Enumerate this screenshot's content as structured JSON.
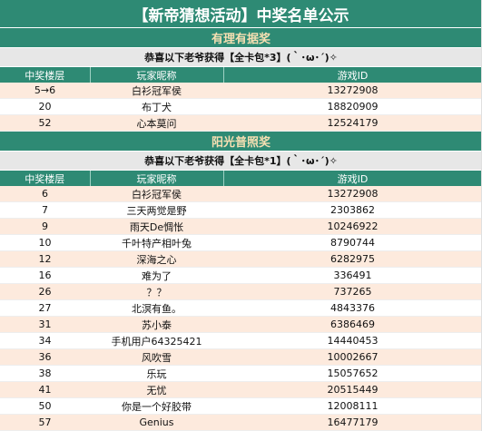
{
  "title": "【新帝猜想活动】中奖名单公示",
  "sections": [
    {
      "name": "有理有据奖",
      "subheader": "恭喜以下老爷获得【全卡包*3】(｀･ω･´)✧",
      "columns": [
        "中奖楼层",
        "玩家昵称",
        "游戏ID"
      ],
      "rows": [
        {
          "floor": "5→6",
          "nickname": "白衫冠军侯",
          "game_id": "13272908"
        },
        {
          "floor": "20",
          "nickname": "布丁犬",
          "game_id": "18820909"
        },
        {
          "floor": "52",
          "nickname": "心本莫问",
          "game_id": "12524179"
        }
      ]
    },
    {
      "name": "阳光普照奖",
      "subheader": "恭喜以下老爷获得【全卡包*1】(｀･ω･´)✧",
      "columns": [
        "中奖楼层",
        "玩家昵称",
        "游戏ID"
      ],
      "rows": [
        {
          "floor": "6",
          "nickname": "白衫冠军侯",
          "game_id": "13272908"
        },
        {
          "floor": "7",
          "nickname": "三天两觉是野",
          "game_id": "2303862"
        },
        {
          "floor": "9",
          "nickname": "雨天De惆怅",
          "game_id": "10246922"
        },
        {
          "floor": "10",
          "nickname": "千叶特产相叶兔",
          "game_id": "8790744"
        },
        {
          "floor": "12",
          "nickname": "深海之心",
          "game_id": "6282975"
        },
        {
          "floor": "16",
          "nickname": "难为了",
          "game_id": "336491"
        },
        {
          "floor": "26",
          "nickname": "？？",
          "game_id": "737265"
        },
        {
          "floor": "27",
          "nickname": "北溟有鱼。",
          "game_id": "4843376"
        },
        {
          "floor": "31",
          "nickname": "苏小泰",
          "game_id": "6386469"
        },
        {
          "floor": "34",
          "nickname": "手机用户64325421",
          "game_id": "14440453"
        },
        {
          "floor": "36",
          "nickname": "风吹雪",
          "game_id": "10002667"
        },
        {
          "floor": "38",
          "nickname": "乐玩",
          "game_id": "15057652"
        },
        {
          "floor": "41",
          "nickname": "无忧",
          "game_id": "20515449"
        },
        {
          "floor": "50",
          "nickname": "你是一个好胶带",
          "game_id": "12008111"
        },
        {
          "floor": "57",
          "nickname": "Genius",
          "game_id": "16477179"
        }
      ]
    }
  ],
  "colors": {
    "header_green": "#2e8a74",
    "section_text": "#f6dfb2",
    "row_odd": "#fdeadd",
    "subheader_gray": "#e7e7e7"
  }
}
